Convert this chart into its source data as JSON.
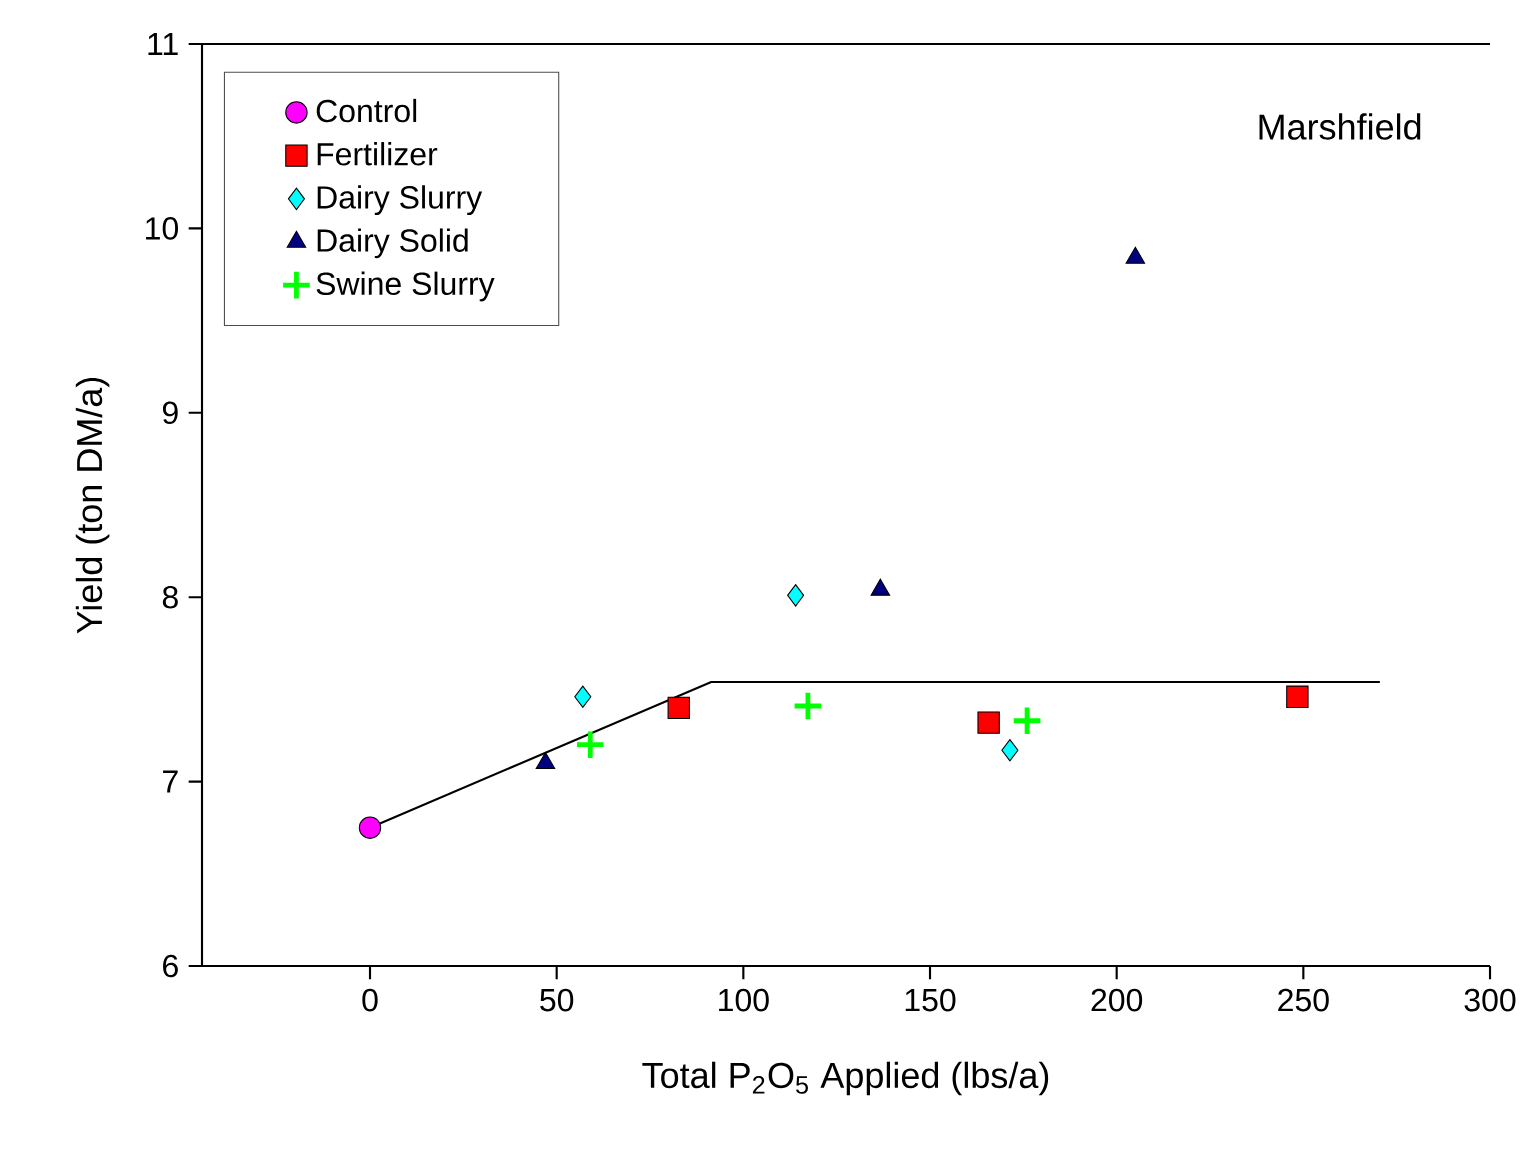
{
  "chart_data": {
    "type": "scatter",
    "xlabel": "Total P$_{2}$O$_{5}$ Applied (lbs/a)",
    "ylabel": "Yield (ton DM/a)",
    "annotations": [
      "Marshfield"
    ],
    "xlim": [
      -45,
      300
    ],
    "xticks": [
      0,
      50,
      100,
      150,
      200,
      250,
      300
    ],
    "ylim": [
      6,
      11
    ],
    "yticks": [
      6,
      7,
      8,
      9,
      10,
      11
    ],
    "grid": false,
    "legend": "top left",
    "series": [
      {
        "name": "Control",
        "color": "#ff00ff",
        "marker": "circle",
        "x": [
          0
        ],
        "values": [
          6.75
        ]
      },
      {
        "name": "Fertilizer",
        "color": "#ff0000",
        "marker": "square",
        "x": [
          82.7,
          165.7,
          248.4
        ],
        "values": [
          7.4,
          7.32,
          7.46
        ]
      },
      {
        "name": "Dairy Slurry",
        "color": "#00ffff",
        "marker": "diamond",
        "x": [
          57,
          114,
          171.4
        ],
        "values": [
          7.46,
          8.01,
          7.17
        ]
      },
      {
        "name": "Dairy Solid",
        "color": "#000080",
        "marker": "triangle",
        "x": [
          47,
          136.7,
          205
        ],
        "values": [
          7.1,
          8.04,
          9.84
        ]
      },
      {
        "name": "Swine Slurry",
        "color": "#00ff00",
        "marker": "cross",
        "x": [
          59,
          117.3,
          176
        ],
        "values": [
          7.2,
          7.41,
          7.33
        ]
      },
      {
        "type": "line",
        "color": "#000000",
        "marker": "none",
        "line_style": "solid",
        "x": [
          0,
          91.4,
          270.5
        ],
        "values": [
          6.75,
          7.54,
          7.54
        ]
      }
    ]
  }
}
